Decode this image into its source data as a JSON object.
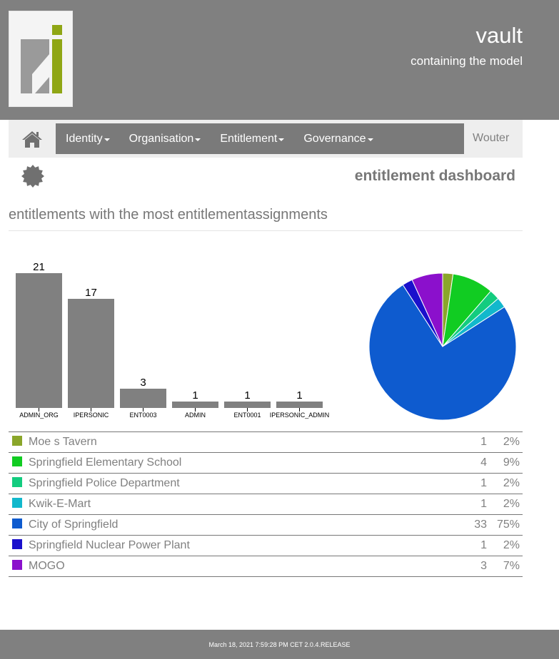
{
  "header": {
    "title": "vault",
    "subtitle": "containing the model"
  },
  "navbar": {
    "menus": [
      {
        "label": "Identity"
      },
      {
        "label": "Organisation"
      },
      {
        "label": "Entitlement"
      },
      {
        "label": "Governance"
      }
    ],
    "user": "Wouter"
  },
  "page": {
    "title": "entitlement dashboard",
    "section_title": "entitlements with the most entitlementassignments"
  },
  "chart_data": [
    {
      "type": "bar",
      "title": "",
      "categories": [
        "ADMIN_ORG",
        "IPERSONIC",
        "ENT0003",
        "ADMIN",
        "ENT0001",
        "IPERSONIC_ADMIN"
      ],
      "values": [
        21,
        17,
        3,
        1,
        1,
        1
      ],
      "ylim": [
        0,
        21
      ],
      "color": "#808080"
    },
    {
      "type": "pie",
      "slices": [
        {
          "label": "Moe s Tavern",
          "count": 1,
          "percent": "2%",
          "color": "#8aa62a"
        },
        {
          "label": "Springfield Elementary School",
          "count": 4,
          "percent": "9%",
          "color": "#11cc22"
        },
        {
          "label": "Springfield Police Department",
          "count": 1,
          "percent": "2%",
          "color": "#13cc7f"
        },
        {
          "label": "Kwik-E-Mart",
          "count": 1,
          "percent": "2%",
          "color": "#12b8cc"
        },
        {
          "label": "City of Springfield",
          "count": 33,
          "percent": "75%",
          "color": "#0e5bcf"
        },
        {
          "label": "Springfield Nuclear Power Plant",
          "count": 1,
          "percent": "2%",
          "color": "#1a10cc"
        },
        {
          "label": "MOGO",
          "count": 3,
          "percent": "7%",
          "color": "#8b10cc"
        }
      ]
    }
  ],
  "footer": {
    "text": "March 18, 2021 7:59:28 PM CET 2.0.4.RELEASE"
  }
}
